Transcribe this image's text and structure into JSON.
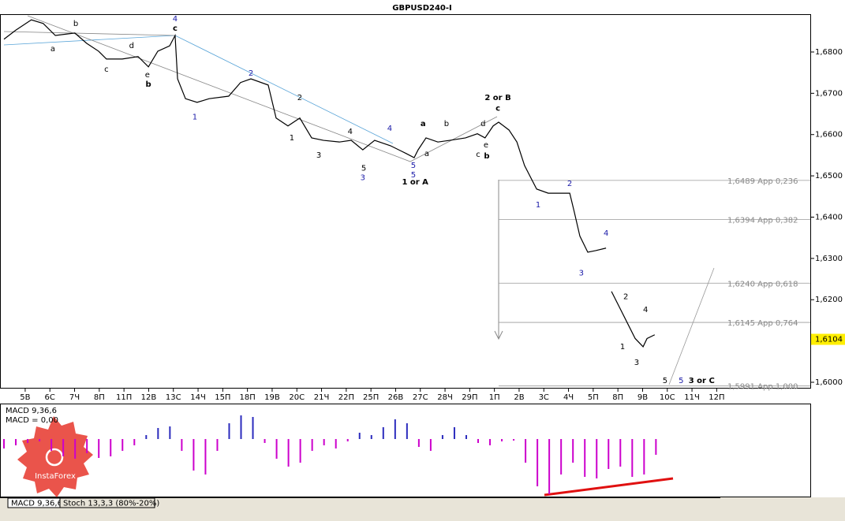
{
  "chart_data": [
    {
      "type": "line",
      "title": "GBPUSD240-I",
      "color": "#000000",
      "x": [
        -0.86,
        -0.38,
        0.25,
        0.73,
        1.22,
        2.01,
        2.49,
        2.97,
        3.29,
        3.93,
        4.57,
        4.99,
        5.37,
        5.85,
        6.07,
        6.17,
        6.49,
        6.96,
        7.45,
        8.24,
        8.72,
        9.14,
        9.84,
        10.16,
        10.64,
        11.12,
        11.6,
        12.08,
        12.72,
        13.2,
        13.67,
        14.15,
        14.79,
        15.43,
        15.75,
        15.91,
        16.23,
        16.71,
        17.19,
        17.83,
        18.31,
        18.62,
        18.95,
        19.17,
        19.59,
        19.91,
        20.22,
        20.71,
        21.18,
        21.66,
        22.05,
        22.24,
        22.46,
        22.78,
        23.1,
        23.52,
        23.63,
        23.74,
        24.06,
        24.38,
        24.7,
        25.02,
        25.18,
        25.49
      ],
      "values": [
        1.6831,
        1.6853,
        1.6878,
        1.6869,
        1.684,
        1.6846,
        1.6821,
        1.6802,
        1.6783,
        1.6783,
        1.6789,
        1.6764,
        1.6802,
        1.6815,
        1.684,
        1.6735,
        1.6687,
        1.6678,
        1.6687,
        1.6693,
        1.6726,
        1.6735,
        1.672,
        1.664,
        1.6621,
        1.664,
        1.6592,
        1.6586,
        1.6582,
        1.6586,
        1.6563,
        1.6586,
        1.6573,
        1.6554,
        1.6544,
        1.6563,
        1.6592,
        1.6582,
        1.6586,
        1.6592,
        1.6602,
        1.6592,
        1.6621,
        1.663,
        1.6611,
        1.6582,
        1.6525,
        1.6468,
        1.6458,
        1.6458,
        1.6458,
        1.6411,
        1.6354,
        1.6315,
        1.6319,
        1.6325,
        null,
        1.622,
        1.6182,
        1.6144,
        1.6106,
        1.6086,
        1.6106,
        1.6115
      ],
      "xlim": [
        -1.02,
        31.79
      ],
      "ylim": [
        1.59847,
        1.68916
      ],
      "xticks": [
        {
          "value": 0,
          "label": "5В"
        },
        {
          "value": 1,
          "label": "6С"
        },
        {
          "value": 2,
          "label": "7Ч"
        },
        {
          "value": 3,
          "label": "8П"
        },
        {
          "value": 4,
          "label": "11П"
        },
        {
          "value": 5,
          "label": "12В"
        },
        {
          "value": 6,
          "label": "13С"
        },
        {
          "value": 7,
          "label": "14Ч"
        },
        {
          "value": 8,
          "label": "15П"
        },
        {
          "value": 9,
          "label": "18П"
        },
        {
          "value": 10,
          "label": "19В"
        },
        {
          "value": 11,
          "label": "20С"
        },
        {
          "value": 12,
          "label": "21Ч"
        },
        {
          "value": 13,
          "label": "22П"
        },
        {
          "value": 14,
          "label": "25П"
        },
        {
          "value": 15,
          "label": "26В"
        },
        {
          "value": 16,
          "label": "27С"
        },
        {
          "value": 17,
          "label": "28Ч"
        },
        {
          "value": 18,
          "label": "29П"
        },
        {
          "value": 19,
          "label": "1П"
        },
        {
          "value": 20,
          "label": "2В"
        },
        {
          "value": 21,
          "label": "3С"
        },
        {
          "value": 22,
          "label": "4Ч"
        },
        {
          "value": 23,
          "label": "5П"
        },
        {
          "value": 24,
          "label": "8П"
        },
        {
          "value": 25,
          "label": "9В"
        },
        {
          "value": 26,
          "label": "10С"
        },
        {
          "value": 27,
          "label": "11Ч"
        },
        {
          "value": 28,
          "label": "12П"
        }
      ],
      "yticks": [
        {
          "value": 1.6,
          "label": "1,6000"
        },
        {
          "value": 1.61,
          "label": "1,6100"
        },
        {
          "value": 1.62,
          "label": "1,6200"
        },
        {
          "value": 1.63,
          "label": "1,6300"
        },
        {
          "value": 1.64,
          "label": "1,6400"
        },
        {
          "value": 1.65,
          "label": "1,6500"
        },
        {
          "value": 1.66,
          "label": "1,6600"
        },
        {
          "value": 1.67,
          "label": "1,6700"
        },
        {
          "value": 1.68,
          "label": "1,6800"
        }
      ],
      "levels": [
        {
          "value": 1.6489,
          "label": "1,6489 App 0,236"
        },
        {
          "value": 1.6394,
          "label": "1,6394 App 0,382"
        },
        {
          "value": 1.624,
          "label": "1,6240 App 0,618"
        },
        {
          "value": 1.6145,
          "label": "1,6145 App 0,764"
        },
        {
          "value": 1.5991,
          "label": "1,5991 App 1,000"
        }
      ],
      "last_price": {
        "value": 1.6104,
        "label": "1,6104"
      },
      "annotations": [
        {
          "text": "a",
          "x": 1.12,
          "y": 1.6808,
          "color": "#000000",
          "bold": false
        },
        {
          "text": "b",
          "x": 2.05,
          "y": 1.6869,
          "color": "#000000",
          "bold": false
        },
        {
          "text": "c",
          "x": 3.29,
          "y": 1.6758,
          "color": "#000000",
          "bold": false
        },
        {
          "text": "d",
          "x": 4.31,
          "y": 1.6815,
          "color": "#000000",
          "bold": false
        },
        {
          "text": "e",
          "x": 4.95,
          "y": 1.6745,
          "color": "#000000",
          "bold": false
        },
        {
          "text": "b",
          "x": 4.99,
          "y": 1.6722,
          "color": "#000000",
          "bold": true
        },
        {
          "text": "4",
          "x": 6.07,
          "y": 1.688,
          "color": "#1a1aa8",
          "bold": false
        },
        {
          "text": "c",
          "x": 6.07,
          "y": 1.6857,
          "color": "#000000",
          "bold": true
        },
        {
          "text": "1",
          "x": 6.87,
          "y": 1.6642,
          "color": "#1a1aa8",
          "bold": false
        },
        {
          "text": "2",
          "x": 9.14,
          "y": 1.6748,
          "color": "#1a1aa8",
          "bold": false
        },
        {
          "text": "2",
          "x": 11.12,
          "y": 1.6689,
          "color": "#000000",
          "bold": false
        },
        {
          "text": "1",
          "x": 10.8,
          "y": 1.6592,
          "color": "#000000",
          "bold": false
        },
        {
          "text": "3",
          "x": 11.89,
          "y": 1.655,
          "color": "#000000",
          "bold": false
        },
        {
          "text": "4",
          "x": 13.16,
          "y": 1.6607,
          "color": "#000000",
          "bold": false
        },
        {
          "text": "5",
          "x": 13.71,
          "y": 1.6518,
          "color": "#000000",
          "bold": false
        },
        {
          "text": "3",
          "x": 13.67,
          "y": 1.6495,
          "color": "#1a1aa8",
          "bold": false
        },
        {
          "text": "4",
          "x": 14.76,
          "y": 1.6615,
          "color": "#1a1aa8",
          "bold": false
        },
        {
          "text": "5",
          "x": 15.72,
          "y": 1.6525,
          "color": "#1a1aa8",
          "bold": false
        },
        {
          "text": "5",
          "x": 15.72,
          "y": 1.6502,
          "color": "#1a1aa8",
          "bold": false
        },
        {
          "text": "1 or A",
          "x": 15.79,
          "y": 1.6485,
          "color": "#000000",
          "bold": true
        },
        {
          "text": "a",
          "x": 16.11,
          "y": 1.6626,
          "color": "#000000",
          "bold": true
        },
        {
          "text": "a",
          "x": 16.26,
          "y": 1.6554,
          "color": "#000000",
          "bold": false
        },
        {
          "text": "b",
          "x": 17.06,
          "y": 1.6626,
          "color": "#000000",
          "bold": false
        },
        {
          "text": "c",
          "x": 18.34,
          "y": 1.6552,
          "color": "#000000",
          "bold": false
        },
        {
          "text": "d",
          "x": 18.54,
          "y": 1.6626,
          "color": "#000000",
          "bold": false
        },
        {
          "text": "e",
          "x": 18.66,
          "y": 1.6575,
          "color": "#000000",
          "bold": false
        },
        {
          "text": "b",
          "x": 18.69,
          "y": 1.6548,
          "color": "#000000",
          "bold": true
        },
        {
          "text": "2 or B",
          "x": 19.14,
          "y": 1.6689,
          "color": "#000000",
          "bold": true
        },
        {
          "text": "c",
          "x": 19.14,
          "y": 1.6663,
          "color": "#000000",
          "bold": true
        },
        {
          "text": "1",
          "x": 20.77,
          "y": 1.643,
          "color": "#1a1aa8",
          "bold": false
        },
        {
          "text": "2",
          "x": 22.05,
          "y": 1.6481,
          "color": "#1a1aa8",
          "bold": false
        },
        {
          "text": "3",
          "x": 22.52,
          "y": 1.6264,
          "color": "#1a1aa8",
          "bold": false
        },
        {
          "text": "4",
          "x": 23.52,
          "y": 1.6361,
          "color": "#1a1aa8",
          "bold": false
        },
        {
          "text": "2",
          "x": 24.32,
          "y": 1.6207,
          "color": "#000000",
          "bold": false
        },
        {
          "text": "1",
          "x": 24.19,
          "y": 1.6086,
          "color": "#000000",
          "bold": false
        },
        {
          "text": "3",
          "x": 24.76,
          "y": 1.6048,
          "color": "#000000",
          "bold": false
        },
        {
          "text": "4",
          "x": 25.12,
          "y": 1.6176,
          "color": "#000000",
          "bold": false
        },
        {
          "text": "5",
          "x": 25.91,
          "y": 1.6004,
          "color": "#000000",
          "bold": false
        },
        {
          "text": "5",
          "x": 26.56,
          "y": 1.6004,
          "color": "#1a1aa8",
          "bold": false
        },
        {
          "text": "3 or C",
          "x": 27.39,
          "y": 1.6004,
          "color": "#000000",
          "bold": true
        }
      ]
    },
    {
      "type": "bar",
      "labels": [
        "MACD 9,36,6",
        "MACD = 0,00"
      ],
      "color_positive": "#2b2bbd",
      "color_negative": "#cc00cc",
      "xlim": [
        -1.02,
        31.79
      ],
      "ylim": [
        -73,
        44
      ],
      "x": [
        -0.86,
        -0.38,
        0.1,
        0.58,
        1.06,
        1.54,
        2.02,
        2.5,
        2.98,
        3.46,
        3.94,
        4.42,
        4.9,
        5.38,
        5.86,
        6.34,
        6.82,
        7.3,
        7.78,
        8.26,
        8.74,
        9.22,
        9.7,
        10.18,
        10.66,
        11.14,
        11.62,
        12.1,
        12.58,
        13.06,
        13.54,
        14.02,
        14.5,
        14.98,
        15.46,
        15.94,
        16.42,
        16.9,
        17.38,
        17.86,
        18.34,
        18.82,
        19.3,
        19.78,
        20.26,
        20.74,
        21.22,
        21.7,
        22.18,
        22.66,
        23.14,
        23.62,
        24.1,
        24.58,
        25.06,
        25.54
      ],
      "values": [
        -12,
        -8,
        -5,
        -3,
        -15,
        -22,
        -25,
        -18,
        -24,
        -22,
        -15,
        -8,
        5,
        14,
        16,
        -15,
        -40,
        -45,
        -15,
        20,
        30,
        28,
        -5,
        -25,
        -35,
        -30,
        -15,
        -8,
        -12,
        -3,
        8,
        5,
        15,
        25,
        20,
        -10,
        -15,
        5,
        15,
        5,
        -5,
        -8,
        -3,
        -2,
        -30,
        -60,
        -70,
        -45,
        -30,
        -48,
        -50,
        -38,
        -35,
        -48,
        -45,
        -20
      ]
    }
  ],
  "tabs": [
    "MACD 9,36,6",
    "Stoch 13,3,3 (80%-20%)"
  ],
  "watermark": "InstaForex"
}
